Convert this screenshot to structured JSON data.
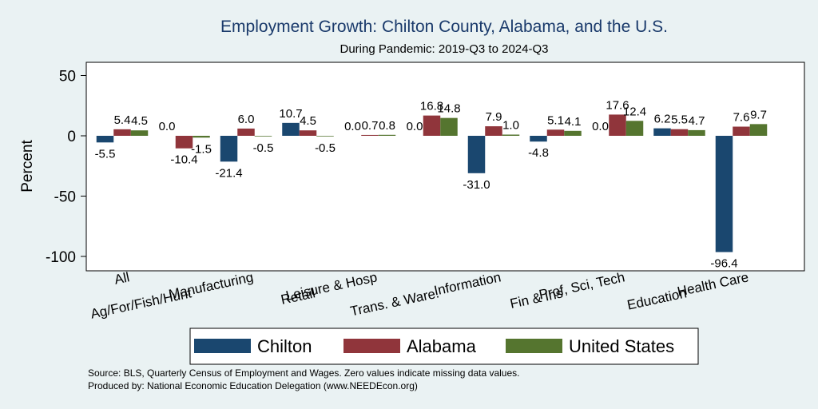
{
  "chart_data": {
    "type": "bar",
    "title": "Employment Growth: Chilton County, Alabama, and the U.S.",
    "subtitle": "During Pandemic: 2019-Q3 to 2024-Q3",
    "ylabel": "Percent",
    "ylim": [
      -105,
      58
    ],
    "yticks": [
      50,
      0,
      -50,
      -100
    ],
    "ytick_labels": [
      "50",
      "0",
      "-50",
      "-100"
    ],
    "grid": false,
    "categories": [
      "All",
      "Ag/For/Fish/Hunt",
      "Manufacturing",
      "Retail",
      "Leisure & Hosp",
      "Trans. & Ware.",
      "Information",
      "Fin & Ins",
      "Prof, Sci, Tech",
      "Education",
      "Health Care"
    ],
    "series": [
      {
        "name": "Chilton",
        "color": "#1a476f",
        "values": [
          -5.5,
          0.0,
          -21.4,
          10.7,
          0.0,
          0.0,
          -31.0,
          -4.8,
          0.0,
          6.2,
          -96.4
        ],
        "labels": [
          "-5.5",
          "0.0",
          "-21.4",
          "10.7",
          "0.0",
          "0.0",
          "-31.0",
          "-4.8",
          "0.0",
          "6.2",
          "-96.4"
        ]
      },
      {
        "name": "Alabama",
        "color": "#90353b",
        "values": [
          5.4,
          -10.4,
          6.0,
          4.5,
          0.7,
          16.8,
          7.9,
          5.1,
          17.6,
          5.5,
          7.6
        ],
        "labels": [
          "5.4",
          "-10.4",
          "6.0",
          "4.5",
          "0.7",
          "16.8",
          "7.9",
          "5.1",
          "17.6",
          "5.5",
          "7.6"
        ]
      },
      {
        "name": "United States",
        "color": "#55752f",
        "values": [
          4.5,
          -1.5,
          -0.5,
          -0.5,
          0.8,
          14.8,
          1.0,
          4.1,
          12.4,
          4.7,
          9.7
        ],
        "labels": [
          "4.5",
          "-1.5",
          "-0.5",
          "-0.5",
          "0.8",
          "14.8",
          "1.0",
          "4.1",
          "12.4",
          "4.7",
          "9.7"
        ]
      }
    ],
    "legend_position": "bottom"
  },
  "footer": {
    "source": "Source: BLS, Quarterly Census of Employment and Wages. Zero values indicate missing data values.",
    "produced": "Produced by: National Economic Education Delegation (www.NEEDEcon.org)"
  }
}
